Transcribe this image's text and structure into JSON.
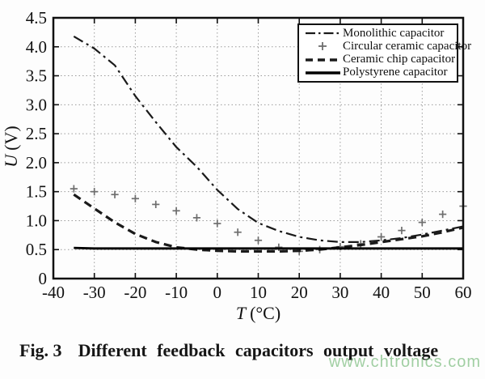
{
  "figure": {
    "caption_label": "Fig. 3",
    "caption_text": "Different feedback capacitors output voltage",
    "watermark": "www.chtronics.com",
    "watermark_color": "#56aa5a"
  },
  "chart_data": {
    "type": "line",
    "title": "",
    "xlabel": "T (°C)",
    "ylabel": "U (V)",
    "xlabel_var": "T",
    "xlabel_unit": "(°C)",
    "ylabel_var": "U",
    "ylabel_unit": "(V)",
    "xlim": [
      -40,
      60
    ],
    "ylim": [
      0,
      4.5
    ],
    "grid": true,
    "legend_position": "top-right",
    "x_ticks": [
      -40,
      -30,
      -20,
      -10,
      0,
      10,
      20,
      30,
      40,
      50,
      60
    ],
    "x_tick_labels": [
      "-40",
      "-30",
      "-20",
      "-10",
      "0",
      "10",
      "20",
      "30",
      "40",
      "50",
      "60"
    ],
    "y_ticks": [
      0,
      0.5,
      1,
      1.5,
      2,
      2.5,
      3,
      3.5,
      4,
      4.5
    ],
    "y_tick_labels": [
      "0",
      "0.5",
      "1.0",
      "1.5",
      "2.0",
      "2.5",
      "3.0",
      "3.5",
      "4.0",
      "4.5"
    ],
    "x": [
      -35,
      -30,
      -25,
      -20,
      -15,
      -10,
      -5,
      0,
      5,
      10,
      15,
      20,
      25,
      30,
      35,
      40,
      45,
      50,
      55,
      60
    ],
    "series": [
      {
        "name": "Monolithic capacitor",
        "style": "dash-dot",
        "color": "#1a1a1a",
        "values": [
          4.18,
          3.97,
          3.68,
          3.15,
          2.7,
          2.27,
          1.93,
          1.53,
          1.2,
          0.96,
          0.82,
          0.72,
          0.66,
          0.63,
          0.63,
          0.66,
          0.7,
          0.76,
          0.83,
          0.9
        ]
      },
      {
        "name": "Circular ceramic capacitor",
        "style": "plus-marker",
        "color": "#6e6e6e",
        "values": [
          1.55,
          1.5,
          1.45,
          1.38,
          1.28,
          1.17,
          1.05,
          0.95,
          0.8,
          0.66,
          0.54,
          0.47,
          0.5,
          0.55,
          0.6,
          0.72,
          0.83,
          0.97,
          1.11,
          1.25
        ]
      },
      {
        "name": "Ceramic chip capacitor",
        "style": "dashed",
        "color": "#1a1a1a",
        "values": [
          1.45,
          1.21,
          0.97,
          0.77,
          0.63,
          0.54,
          0.5,
          0.48,
          0.47,
          0.47,
          0.47,
          0.48,
          0.5,
          0.54,
          0.58,
          0.63,
          0.68,
          0.73,
          0.8,
          0.88
        ]
      },
      {
        "name": "Polystyrene capacitor",
        "style": "solid",
        "color": "#000000",
        "values": [
          0.53,
          0.52,
          0.52,
          0.52,
          0.52,
          0.52,
          0.52,
          0.52,
          0.52,
          0.52,
          0.52,
          0.52,
          0.52,
          0.52,
          0.52,
          0.52,
          0.52,
          0.52,
          0.52,
          0.52
        ]
      }
    ]
  }
}
